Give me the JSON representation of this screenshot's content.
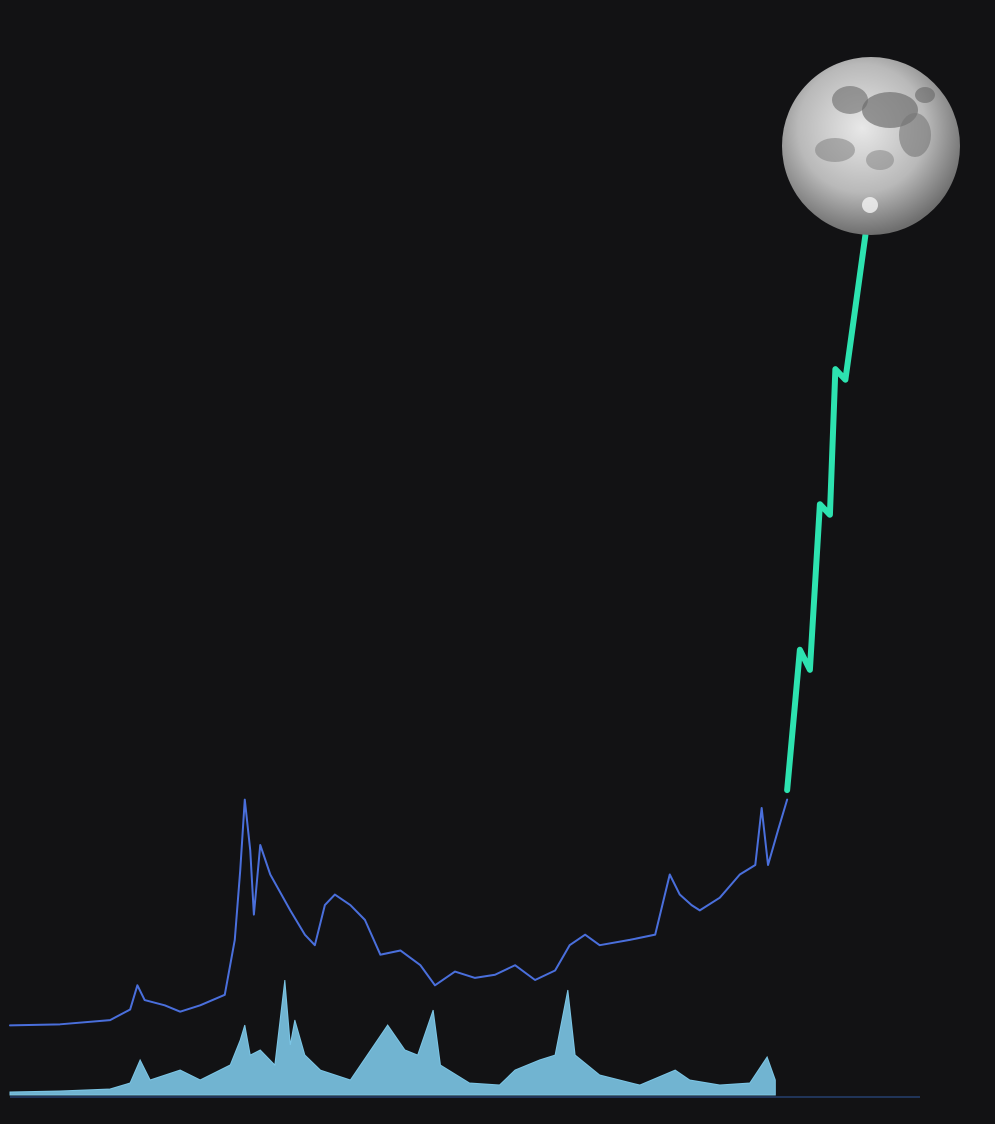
{
  "chart_data": {
    "type": "line",
    "xlim": [
      0,
      100
    ],
    "ylim": [
      0,
      100
    ],
    "y2lim": [
      0,
      100
    ],
    "series": [
      {
        "color": "#4a6fdc",
        "x": [
          0,
          5.5,
          11.0,
          13.2,
          14.0,
          14.8,
          17.0,
          18.7,
          20.9,
          23.6,
          24.7,
          25.3,
          25.8,
          26.4,
          26.8,
          27.5,
          28.6,
          30.8,
          32.4,
          33.5,
          34.6,
          35.7,
          37.4,
          39.0,
          40.7,
          42.9,
          45.1,
          46.7,
          48.9,
          51.1,
          53.3,
          55.5,
          57.7,
          59.9,
          61.5,
          63.2,
          64.8,
          68.1,
          70.9,
          72.5,
          73.6,
          74.9,
          75.8,
          78.0,
          80.2,
          81.9,
          82.6,
          83.3,
          84.4,
          85.4
        ],
        "values": [
          6.6,
          6.7,
          7.1,
          8.1,
          10.4,
          9.0,
          8.5,
          7.9,
          8.5,
          9.5,
          14.7,
          21.3,
          28.0,
          23.2,
          17.1,
          23.7,
          20.9,
          17.5,
          15.2,
          14.2,
          18.0,
          19.0,
          18.0,
          16.6,
          13.3,
          13.7,
          12.3,
          10.4,
          11.7,
          11.1,
          11.4,
          12.3,
          10.9,
          11.8,
          14.2,
          15.2,
          14.2,
          14.7,
          15.2,
          20.9,
          19.0,
          18.0,
          17.5,
          18.7,
          20.9,
          21.8,
          27.2,
          21.8,
          25.1,
          28.0
        ]
      },
      {
        "color": "#2de3b0",
        "x": [
          85.4,
          86.3,
          86.8,
          87.9,
          89.0,
          90.1,
          90.7,
          91.8,
          94.0
        ],
        "values": [
          28.9,
          37.4,
          42.2,
          40.3,
          56.0,
          55.0,
          68.8,
          67.8,
          81.5
        ]
      },
      {
        "color": "#7cc6e6",
        "type": "area",
        "axis": "y2",
        "x": [
          0,
          5.5,
          11.0,
          13.2,
          14.3,
          15.4,
          18.7,
          20.9,
          24.2,
          25.3,
          25.8,
          26.4,
          27.5,
          29.1,
          30.2,
          30.8,
          31.3,
          32.4,
          34.1,
          37.4,
          41.5,
          43.4,
          44.8,
          46.5,
          47.3,
          50.5,
          53.8,
          55.5,
          58.2,
          59.9,
          61.3,
          62.1,
          64.8,
          69.2,
          73.1,
          74.7,
          78.0,
          81.3,
          83.2,
          84.1
        ],
        "values": [
          2.5,
          3.3,
          5,
          10,
          29.2,
          12.5,
          20.8,
          12.5,
          25,
          45.8,
          58.3,
          33.3,
          37.5,
          25,
          95.8,
          41.7,
          62.5,
          33.3,
          20.8,
          12.5,
          58.3,
          37.5,
          33.3,
          70.8,
          25,
          10,
          8.3,
          20.8,
          29.2,
          33.3,
          87.5,
          33.3,
          16.7,
          8.3,
          20.8,
          12.5,
          8.3,
          10,
          31.7,
          12.5
        ]
      }
    ]
  }
}
